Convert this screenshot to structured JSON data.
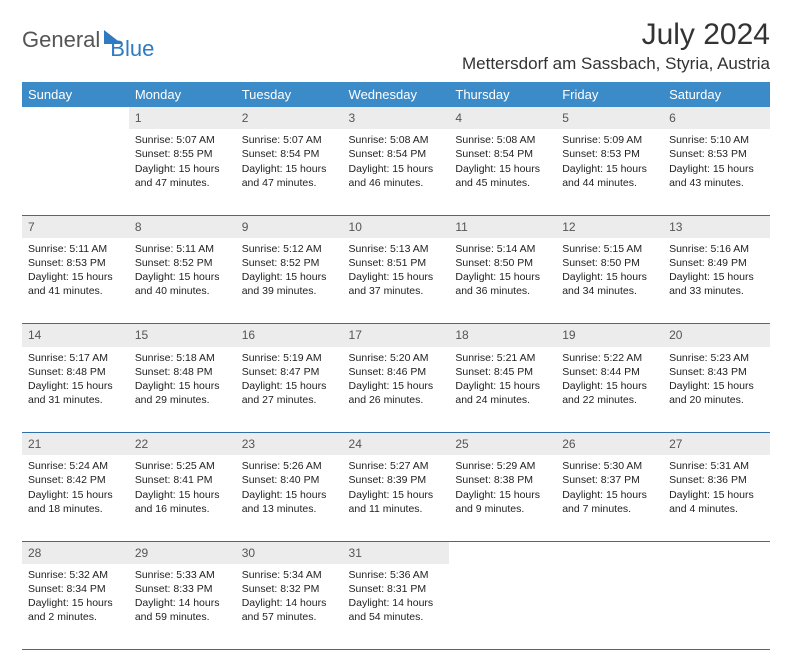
{
  "brand": {
    "part1": "General",
    "part2": "Blue"
  },
  "title": "July 2024",
  "location": "Mettersdorf am Sassbach, Styria, Austria",
  "colors": {
    "header_bg": "#3b8bc9",
    "header_text": "#ffffff",
    "daynum_bg": "#ececec",
    "row_border": "#2f6fa8",
    "brand_gray": "#555555",
    "brand_blue": "#2f7ac0"
  },
  "weekdays": [
    "Sunday",
    "Monday",
    "Tuesday",
    "Wednesday",
    "Thursday",
    "Friday",
    "Saturday"
  ],
  "weeks": [
    {
      "nums": [
        "",
        "1",
        "2",
        "3",
        "4",
        "5",
        "6"
      ],
      "cells": [
        null,
        {
          "sunrise": "5:07 AM",
          "sunset": "8:55 PM",
          "daylight": "15 hours and 47 minutes."
        },
        {
          "sunrise": "5:07 AM",
          "sunset": "8:54 PM",
          "daylight": "15 hours and 47 minutes."
        },
        {
          "sunrise": "5:08 AM",
          "sunset": "8:54 PM",
          "daylight": "15 hours and 46 minutes."
        },
        {
          "sunrise": "5:08 AM",
          "sunset": "8:54 PM",
          "daylight": "15 hours and 45 minutes."
        },
        {
          "sunrise": "5:09 AM",
          "sunset": "8:53 PM",
          "daylight": "15 hours and 44 minutes."
        },
        {
          "sunrise": "5:10 AM",
          "sunset": "8:53 PM",
          "daylight": "15 hours and 43 minutes."
        }
      ]
    },
    {
      "nums": [
        "7",
        "8",
        "9",
        "10",
        "11",
        "12",
        "13"
      ],
      "cells": [
        {
          "sunrise": "5:11 AM",
          "sunset": "8:53 PM",
          "daylight": "15 hours and 41 minutes."
        },
        {
          "sunrise": "5:11 AM",
          "sunset": "8:52 PM",
          "daylight": "15 hours and 40 minutes."
        },
        {
          "sunrise": "5:12 AM",
          "sunset": "8:52 PM",
          "daylight": "15 hours and 39 minutes."
        },
        {
          "sunrise": "5:13 AM",
          "sunset": "8:51 PM",
          "daylight": "15 hours and 37 minutes."
        },
        {
          "sunrise": "5:14 AM",
          "sunset": "8:50 PM",
          "daylight": "15 hours and 36 minutes."
        },
        {
          "sunrise": "5:15 AM",
          "sunset": "8:50 PM",
          "daylight": "15 hours and 34 minutes."
        },
        {
          "sunrise": "5:16 AM",
          "sunset": "8:49 PM",
          "daylight": "15 hours and 33 minutes."
        }
      ]
    },
    {
      "nums": [
        "14",
        "15",
        "16",
        "17",
        "18",
        "19",
        "20"
      ],
      "cells": [
        {
          "sunrise": "5:17 AM",
          "sunset": "8:48 PM",
          "daylight": "15 hours and 31 minutes."
        },
        {
          "sunrise": "5:18 AM",
          "sunset": "8:48 PM",
          "daylight": "15 hours and 29 minutes."
        },
        {
          "sunrise": "5:19 AM",
          "sunset": "8:47 PM",
          "daylight": "15 hours and 27 minutes."
        },
        {
          "sunrise": "5:20 AM",
          "sunset": "8:46 PM",
          "daylight": "15 hours and 26 minutes."
        },
        {
          "sunrise": "5:21 AM",
          "sunset": "8:45 PM",
          "daylight": "15 hours and 24 minutes."
        },
        {
          "sunrise": "5:22 AM",
          "sunset": "8:44 PM",
          "daylight": "15 hours and 22 minutes."
        },
        {
          "sunrise": "5:23 AM",
          "sunset": "8:43 PM",
          "daylight": "15 hours and 20 minutes."
        }
      ]
    },
    {
      "nums": [
        "21",
        "22",
        "23",
        "24",
        "25",
        "26",
        "27"
      ],
      "cells": [
        {
          "sunrise": "5:24 AM",
          "sunset": "8:42 PM",
          "daylight": "15 hours and 18 minutes."
        },
        {
          "sunrise": "5:25 AM",
          "sunset": "8:41 PM",
          "daylight": "15 hours and 16 minutes."
        },
        {
          "sunrise": "5:26 AM",
          "sunset": "8:40 PM",
          "daylight": "15 hours and 13 minutes."
        },
        {
          "sunrise": "5:27 AM",
          "sunset": "8:39 PM",
          "daylight": "15 hours and 11 minutes."
        },
        {
          "sunrise": "5:29 AM",
          "sunset": "8:38 PM",
          "daylight": "15 hours and 9 minutes."
        },
        {
          "sunrise": "5:30 AM",
          "sunset": "8:37 PM",
          "daylight": "15 hours and 7 minutes."
        },
        {
          "sunrise": "5:31 AM",
          "sunset": "8:36 PM",
          "daylight": "15 hours and 4 minutes."
        }
      ]
    },
    {
      "nums": [
        "28",
        "29",
        "30",
        "31",
        "",
        "",
        ""
      ],
      "cells": [
        {
          "sunrise": "5:32 AM",
          "sunset": "8:34 PM",
          "daylight": "15 hours and 2 minutes."
        },
        {
          "sunrise": "5:33 AM",
          "sunset": "8:33 PM",
          "daylight": "14 hours and 59 minutes."
        },
        {
          "sunrise": "5:34 AM",
          "sunset": "8:32 PM",
          "daylight": "14 hours and 57 minutes."
        },
        {
          "sunrise": "5:36 AM",
          "sunset": "8:31 PM",
          "daylight": "14 hours and 54 minutes."
        },
        null,
        null,
        null
      ]
    }
  ],
  "labels": {
    "sunrise": "Sunrise: ",
    "sunset": "Sunset: ",
    "daylight": "Daylight: "
  }
}
